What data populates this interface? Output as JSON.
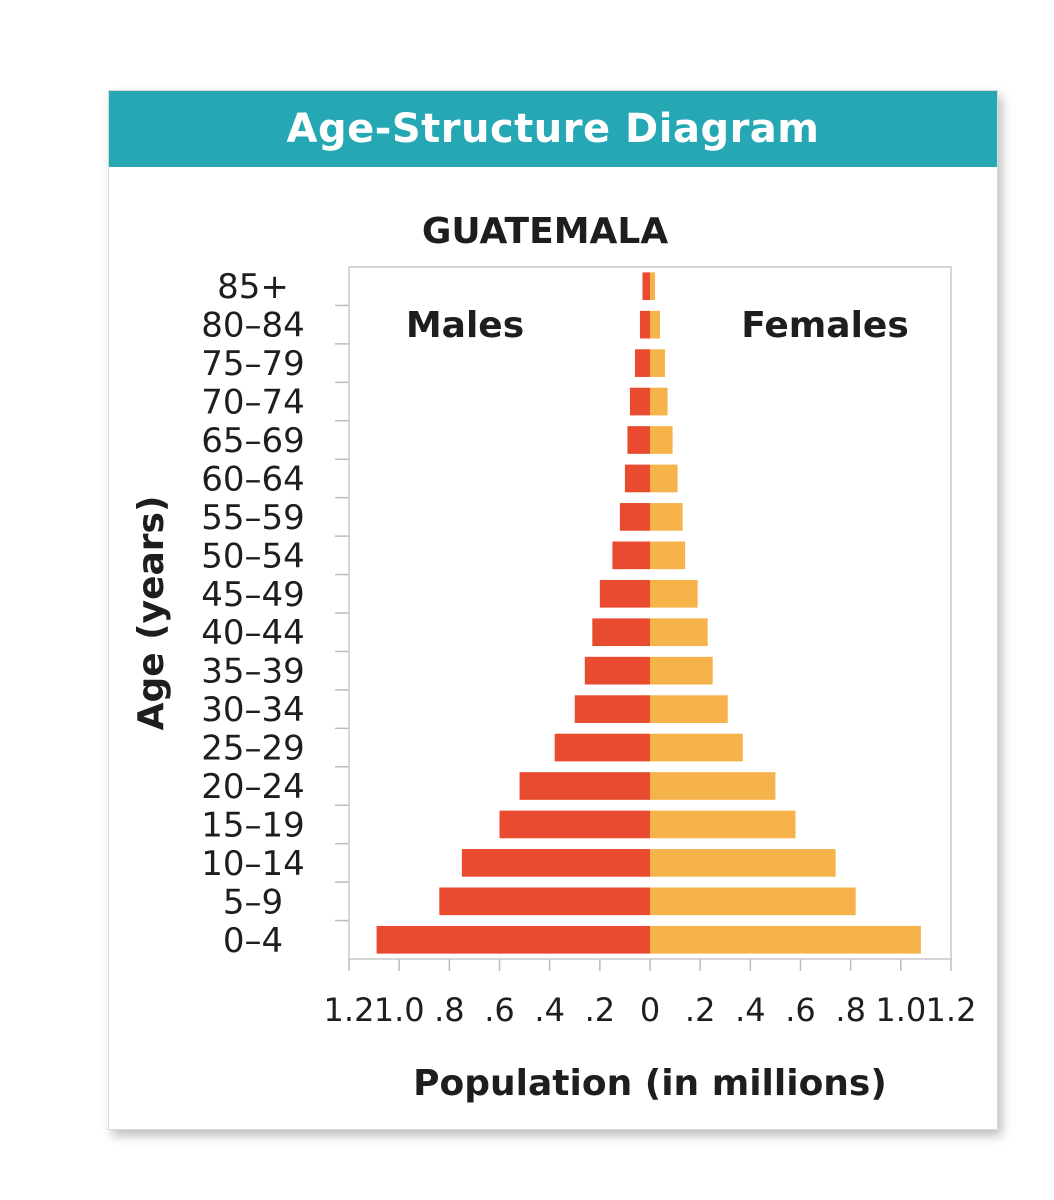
{
  "header": {
    "title": "Age-Structure Diagram"
  },
  "chart_data": {
    "type": "bar",
    "orientation": "horizontal",
    "title": "GUATEMALA",
    "ylabel": "Age (years)",
    "xlabel": "Population (in millions)",
    "xlim": [
      -1.2,
      1.2
    ],
    "x_tick_labels": [
      "1.2",
      "1.0",
      ".8",
      ".6",
      ".4",
      ".2",
      "0",
      ".2",
      ".4",
      ".6",
      ".8",
      "1.0",
      "1.2"
    ],
    "categories": [
      "85+",
      "80–84",
      "75–79",
      "70–74",
      "65–69",
      "60–64",
      "55–59",
      "50–54",
      "45–49",
      "40–44",
      "35–39",
      "30–34",
      "25–29",
      "20–24",
      "15–19",
      "10–14",
      "5–9",
      "0–4"
    ],
    "series": [
      {
        "name": "Males",
        "color": "#e84b2f",
        "values": [
          0.03,
          0.04,
          0.06,
          0.08,
          0.09,
          0.1,
          0.12,
          0.15,
          0.2,
          0.23,
          0.26,
          0.3,
          0.38,
          0.52,
          0.6,
          0.75,
          0.84,
          1.09
        ]
      },
      {
        "name": "Females",
        "color": "#f6b34a",
        "values": [
          0.02,
          0.04,
          0.06,
          0.07,
          0.09,
          0.11,
          0.13,
          0.14,
          0.19,
          0.23,
          0.25,
          0.31,
          0.37,
          0.5,
          0.58,
          0.74,
          0.82,
          1.08
        ]
      }
    ]
  }
}
